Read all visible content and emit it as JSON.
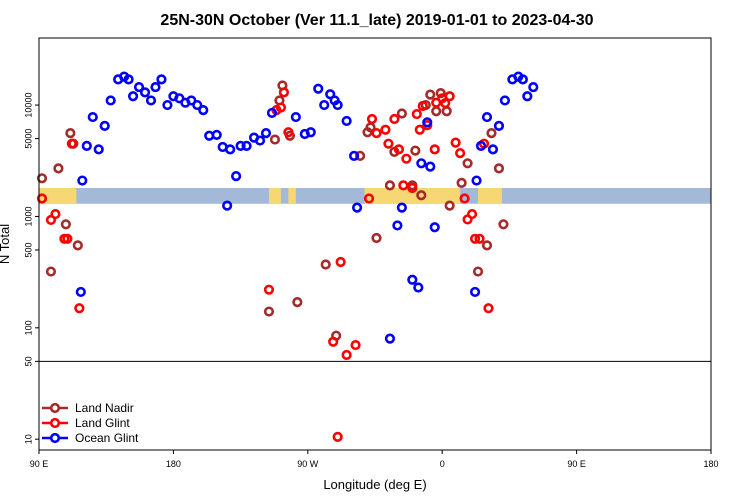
{
  "chart_data": {
    "type": "scatter",
    "title": "25N-30N October (Ver 11.1_late)   2019-01-01 to 2023-04-30",
    "xlabel": "Longitude (deg E)",
    "ylabel": "N Total",
    "x_range": [
      90,
      450
    ],
    "y_scale": "log",
    "y_ticks": [
      {
        "value": 10,
        "label": "10"
      },
      {
        "value": 50,
        "label": "50"
      },
      {
        "value": 100,
        "label": "100"
      },
      {
        "value": 500,
        "label": "500"
      },
      {
        "value": 1000,
        "label": "1000"
      },
      {
        "value": 5000,
        "label": "5000"
      },
      {
        "value": 10000,
        "label": "10000"
      }
    ],
    "x_ticks": [
      {
        "value": 90,
        "label": "90 E"
      },
      {
        "value": 180,
        "label": "180"
      },
      {
        "value": 270,
        "label": "90 W"
      },
      {
        "value": 360,
        "label": "0"
      },
      {
        "value": 450,
        "label": "90 E"
      },
      {
        "value": 540,
        "label": "180"
      }
    ],
    "x_axis_max": 540,
    "y_range": [
      8,
      40000
    ],
    "reference_line": 50,
    "band_range": [
      1300,
      1800
    ],
    "band_colors": [
      "#f7d774",
      "#a4b9d8"
    ],
    "legend_position": "bottom-left",
    "grid": false,
    "series": [
      {
        "name": "Land Nadir",
        "color": "#a52a2a",
        "points": [
          [
            92,
            2200
          ],
          [
            98,
            320
          ],
          [
            103,
            2700
          ],
          [
            108,
            850
          ],
          [
            111,
            5600
          ],
          [
            113,
            4500
          ],
          [
            116,
            550
          ],
          [
            244,
            140
          ],
          [
            248,
            4900
          ],
          [
            251,
            11000
          ],
          [
            253,
            15000
          ],
          [
            258,
            5300
          ],
          [
            263,
            170
          ],
          [
            282,
            370
          ],
          [
            289,
            85
          ],
          [
            305,
            3500
          ],
          [
            310,
            5700
          ],
          [
            312,
            6300
          ],
          [
            316,
            640
          ],
          [
            325,
            1900
          ],
          [
            328,
            3800
          ],
          [
            333,
            8400
          ],
          [
            340,
            1900
          ],
          [
            342,
            3900
          ],
          [
            346,
            1550
          ],
          [
            349,
            10000
          ],
          [
            352,
            12400
          ],
          [
            356,
            8800
          ],
          [
            359,
            12800
          ],
          [
            363,
            8800
          ],
          [
            365,
            1250
          ],
          [
            373,
            2000
          ],
          [
            377,
            3000
          ],
          [
            384,
            320
          ],
          [
            390,
            550
          ],
          [
            393,
            5600
          ],
          [
            398,
            2700
          ],
          [
            401,
            850
          ]
        ]
      },
      {
        "name": "Land Glint",
        "color": "#ff0000",
        "points": [
          [
            92,
            1450
          ],
          [
            98,
            930
          ],
          [
            101,
            1050
          ],
          [
            107,
            630
          ],
          [
            109,
            630
          ],
          [
            112,
            4500
          ],
          [
            117,
            150
          ],
          [
            244,
            220
          ],
          [
            249,
            9000
          ],
          [
            252,
            9500
          ],
          [
            254,
            13000
          ],
          [
            257,
            5700
          ],
          [
            287,
            75
          ],
          [
            290,
            10.5
          ],
          [
            292,
            390
          ],
          [
            296,
            57
          ],
          [
            302,
            70
          ],
          [
            311,
            1450
          ],
          [
            313,
            7500
          ],
          [
            316,
            5600
          ],
          [
            322,
            6000
          ],
          [
            324,
            4500
          ],
          [
            328,
            7500
          ],
          [
            331,
            4000
          ],
          [
            334,
            1900
          ],
          [
            336,
            3300
          ],
          [
            340,
            1800
          ],
          [
            343,
            8300
          ],
          [
            345,
            6000
          ],
          [
            347,
            9800
          ],
          [
            350,
            6600
          ],
          [
            355,
            4000
          ],
          [
            356,
            10500
          ],
          [
            360,
            11500
          ],
          [
            362,
            10400
          ],
          [
            365,
            12000
          ],
          [
            369,
            4600
          ],
          [
            372,
            3700
          ],
          [
            375,
            1450
          ],
          [
            377,
            940
          ],
          [
            380,
            1050
          ],
          [
            382,
            630
          ],
          [
            385,
            630
          ],
          [
            388,
            4500
          ],
          [
            391,
            150
          ]
        ]
      },
      {
        "name": "Ocean Glint",
        "color": "#0000ff",
        "points": [
          [
            118,
            210
          ],
          [
            119,
            2100
          ],
          [
            122,
            4300
          ],
          [
            126,
            7800
          ],
          [
            130,
            4000
          ],
          [
            134,
            6500
          ],
          [
            138,
            11000
          ],
          [
            143,
            17000
          ],
          [
            147,
            18000
          ],
          [
            150,
            17000
          ],
          [
            153,
            12000
          ],
          [
            157,
            14500
          ],
          [
            161,
            13000
          ],
          [
            165,
            11000
          ],
          [
            168,
            14500
          ],
          [
            172,
            17000
          ],
          [
            176,
            10000
          ],
          [
            180,
            12000
          ],
          [
            184,
            11500
          ],
          [
            188,
            10500
          ],
          [
            192,
            11000
          ],
          [
            196,
            10000
          ],
          [
            200,
            9000
          ],
          [
            204,
            5300
          ],
          [
            209,
            5400
          ],
          [
            213,
            4200
          ],
          [
            216,
            1250
          ],
          [
            218,
            4000
          ],
          [
            222,
            2300
          ],
          [
            225,
            4300
          ],
          [
            229,
            4300
          ],
          [
            234,
            5100
          ],
          [
            238,
            4800
          ],
          [
            242,
            5600
          ],
          [
            246,
            8500
          ],
          [
            262,
            7800
          ],
          [
            268,
            5500
          ],
          [
            272,
            5700
          ],
          [
            277,
            14000
          ],
          [
            281,
            10000
          ],
          [
            285,
            12500
          ],
          [
            288,
            11000
          ],
          [
            290,
            10000
          ],
          [
            296,
            7200
          ],
          [
            301,
            3500
          ],
          [
            303,
            1200
          ],
          [
            325,
            80
          ],
          [
            330,
            830
          ],
          [
            333,
            1200
          ],
          [
            340,
            270
          ],
          [
            344,
            230
          ],
          [
            346,
            3000
          ],
          [
            350,
            7000
          ],
          [
            352,
            2800
          ],
          [
            355,
            800
          ],
          [
            382,
            210
          ],
          [
            383,
            2100
          ],
          [
            386,
            4300
          ],
          [
            390,
            7800
          ],
          [
            394,
            4000
          ],
          [
            398,
            6500
          ],
          [
            402,
            11000
          ],
          [
            407,
            17000
          ],
          [
            411,
            18000
          ],
          [
            414,
            17000
          ],
          [
            417,
            12000
          ],
          [
            421,
            14500
          ]
        ]
      }
    ]
  }
}
